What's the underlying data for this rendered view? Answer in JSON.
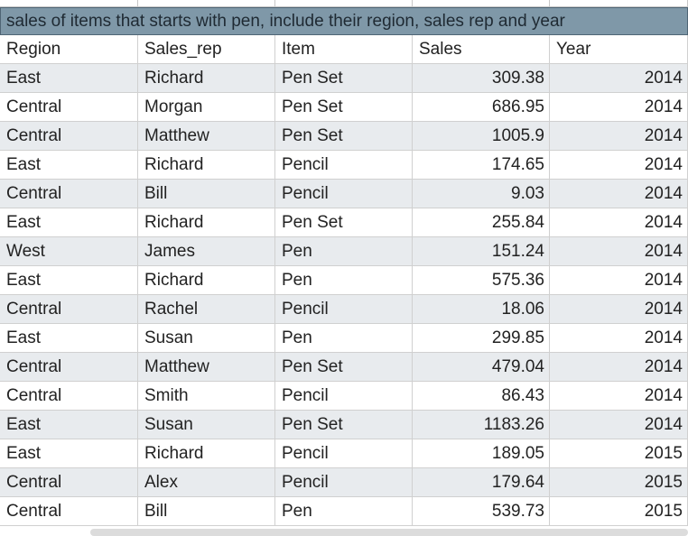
{
  "sheet": {
    "title": "sales of items that starts with pen, include their region, sales rep and year",
    "headers": [
      "Region",
      "Sales_rep",
      "Item",
      "Sales",
      "Year"
    ],
    "rows": [
      [
        "East",
        "Richard",
        "Pen Set",
        "309.38",
        "2014"
      ],
      [
        "Central",
        "Morgan",
        "Pen Set",
        "686.95",
        "2014"
      ],
      [
        "Central",
        "Matthew",
        "Pen Set",
        "1005.9",
        "2014"
      ],
      [
        "East",
        "Richard",
        "Pencil",
        "174.65",
        "2014"
      ],
      [
        "Central",
        "Bill",
        "Pencil",
        "9.03",
        "2014"
      ],
      [
        "East",
        "Richard",
        "Pen Set",
        "255.84",
        "2014"
      ],
      [
        "West",
        "James",
        "Pen",
        "151.24",
        "2014"
      ],
      [
        "East",
        "Richard",
        "Pen",
        "575.36",
        "2014"
      ],
      [
        "Central",
        "Rachel",
        "Pencil",
        "18.06",
        "2014"
      ],
      [
        "East",
        "Susan",
        "Pen",
        "299.85",
        "2014"
      ],
      [
        "Central",
        "Matthew",
        "Pen Set",
        "479.04",
        "2014"
      ],
      [
        "Central",
        "Smith",
        "Pencil",
        "86.43",
        "2014"
      ],
      [
        "East",
        "Susan",
        "Pen Set",
        "1183.26",
        "2014"
      ],
      [
        "East",
        "Richard",
        "Pencil",
        "189.05",
        "2015"
      ],
      [
        "Central",
        "Alex",
        "Pencil",
        "179.64",
        "2015"
      ],
      [
        "Central",
        "Bill",
        "Pen",
        "539.73",
        "2015"
      ]
    ]
  },
  "colors": {
    "title_bar": "#7f98a8",
    "alt_row": "#e8ebee",
    "grid_line": "#d0d0d0"
  }
}
